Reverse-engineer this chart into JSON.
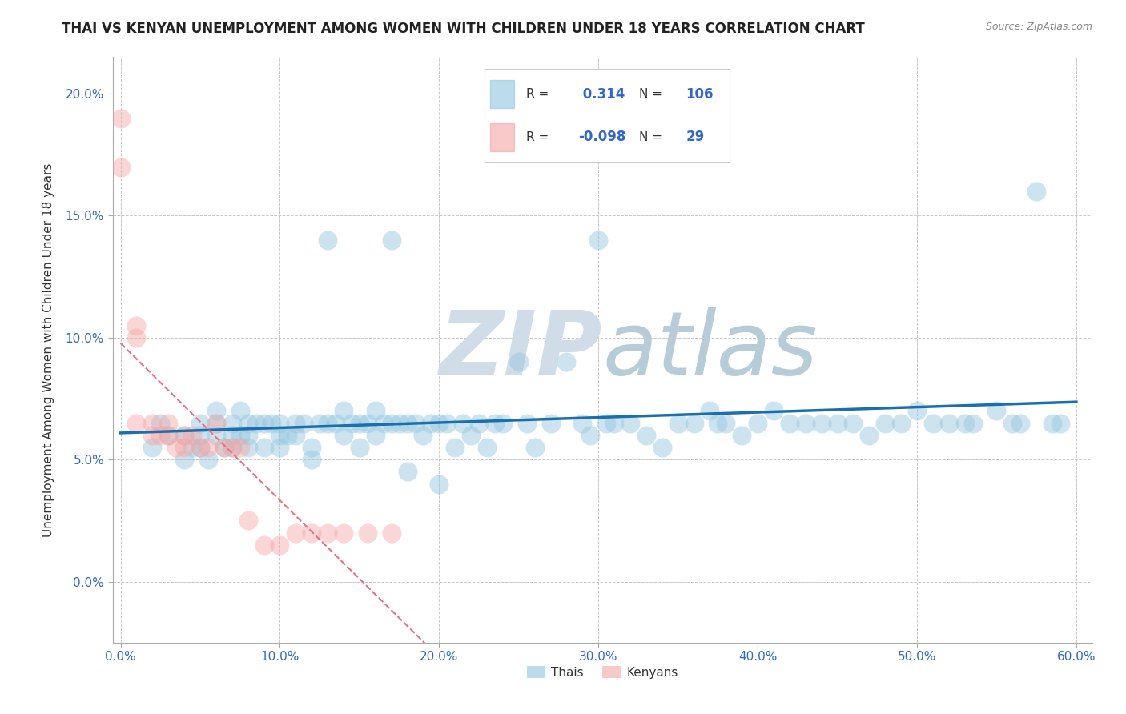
{
  "title": "THAI VS KENYAN UNEMPLOYMENT AMONG WOMEN WITH CHILDREN UNDER 18 YEARS CORRELATION CHART",
  "source": "Source: ZipAtlas.com",
  "ylabel": "Unemployment Among Women with Children Under 18 years",
  "xlabel": "",
  "xlim": [
    -0.005,
    0.61
  ],
  "ylim": [
    -0.025,
    0.215
  ],
  "xticks": [
    0.0,
    0.1,
    0.2,
    0.3,
    0.4,
    0.5,
    0.6
  ],
  "yticks": [
    0.0,
    0.05,
    0.1,
    0.15,
    0.2
  ],
  "xtick_labels": [
    "0.0%",
    "10.0%",
    "20.0%",
    "30.0%",
    "40.0%",
    "50.0%",
    "60.0%"
  ],
  "ytick_labels": [
    "0.0%",
    "5.0%",
    "10.0%",
    "15.0%",
    "20.0%"
  ],
  "thai_R": 0.314,
  "thai_N": 106,
  "kenyan_R": -0.098,
  "kenyan_N": 29,
  "thai_color": "#92c5de",
  "kenyan_color": "#f4a6a6",
  "thai_line_color": "#1a6faf",
  "kenyan_line_color": "#e87080",
  "background_color": "#ffffff",
  "grid_color": "#c8c8c8",
  "watermark_zip": "ZIP",
  "watermark_atlas": "atlas",
  "watermark_color": "#d0dce8",
  "title_fontsize": 13,
  "label_fontsize": 11,
  "tick_fontsize": 11,
  "legend_label_thai": "Thais",
  "legend_label_kenyan": "Kenyans",
  "thai_x": [
    0.02,
    0.025,
    0.03,
    0.04,
    0.04,
    0.045,
    0.05,
    0.05,
    0.05,
    0.055,
    0.06,
    0.06,
    0.06,
    0.065,
    0.07,
    0.07,
    0.07,
    0.075,
    0.075,
    0.08,
    0.08,
    0.08,
    0.085,
    0.09,
    0.09,
    0.095,
    0.1,
    0.1,
    0.1,
    0.105,
    0.11,
    0.11,
    0.115,
    0.12,
    0.12,
    0.125,
    0.13,
    0.13,
    0.135,
    0.14,
    0.14,
    0.145,
    0.15,
    0.15,
    0.155,
    0.16,
    0.16,
    0.165,
    0.17,
    0.17,
    0.175,
    0.18,
    0.18,
    0.185,
    0.19,
    0.195,
    0.2,
    0.2,
    0.205,
    0.21,
    0.215,
    0.22,
    0.225,
    0.23,
    0.235,
    0.24,
    0.25,
    0.255,
    0.26,
    0.27,
    0.28,
    0.29,
    0.295,
    0.3,
    0.305,
    0.31,
    0.32,
    0.33,
    0.34,
    0.35,
    0.36,
    0.37,
    0.375,
    0.38,
    0.39,
    0.4,
    0.41,
    0.42,
    0.43,
    0.44,
    0.45,
    0.46,
    0.47,
    0.48,
    0.49,
    0.5,
    0.51,
    0.52,
    0.53,
    0.535,
    0.55,
    0.56,
    0.565,
    0.575,
    0.585,
    0.59
  ],
  "thai_y": [
    0.055,
    0.065,
    0.06,
    0.05,
    0.06,
    0.055,
    0.065,
    0.06,
    0.055,
    0.05,
    0.07,
    0.065,
    0.06,
    0.055,
    0.065,
    0.06,
    0.055,
    0.07,
    0.06,
    0.065,
    0.06,
    0.055,
    0.065,
    0.065,
    0.055,
    0.065,
    0.065,
    0.06,
    0.055,
    0.06,
    0.065,
    0.06,
    0.065,
    0.055,
    0.05,
    0.065,
    0.14,
    0.065,
    0.065,
    0.07,
    0.06,
    0.065,
    0.065,
    0.055,
    0.065,
    0.07,
    0.06,
    0.065,
    0.14,
    0.065,
    0.065,
    0.045,
    0.065,
    0.065,
    0.06,
    0.065,
    0.065,
    0.04,
    0.065,
    0.055,
    0.065,
    0.06,
    0.065,
    0.055,
    0.065,
    0.065,
    0.09,
    0.065,
    0.055,
    0.065,
    0.09,
    0.065,
    0.06,
    0.14,
    0.065,
    0.065,
    0.065,
    0.06,
    0.055,
    0.065,
    0.065,
    0.07,
    0.065,
    0.065,
    0.06,
    0.065,
    0.07,
    0.065,
    0.065,
    0.065,
    0.065,
    0.065,
    0.06,
    0.065,
    0.065,
    0.07,
    0.065,
    0.065,
    0.065,
    0.065,
    0.07,
    0.065,
    0.065,
    0.16,
    0.065,
    0.065
  ],
  "kenyan_x": [
    0.0,
    0.0,
    0.01,
    0.01,
    0.01,
    0.02,
    0.02,
    0.025,
    0.03,
    0.03,
    0.035,
    0.04,
    0.04,
    0.045,
    0.05,
    0.055,
    0.06,
    0.065,
    0.07,
    0.075,
    0.08,
    0.09,
    0.1,
    0.11,
    0.12,
    0.13,
    0.14,
    0.155,
    0.17
  ],
  "kenyan_y": [
    0.19,
    0.17,
    0.105,
    0.1,
    0.065,
    0.065,
    0.06,
    0.06,
    0.065,
    0.06,
    0.055,
    0.06,
    0.055,
    0.06,
    0.055,
    0.055,
    0.065,
    0.055,
    0.055,
    0.055,
    0.025,
    0.015,
    0.015,
    0.02,
    0.02,
    0.02,
    0.02,
    0.02,
    0.02
  ]
}
